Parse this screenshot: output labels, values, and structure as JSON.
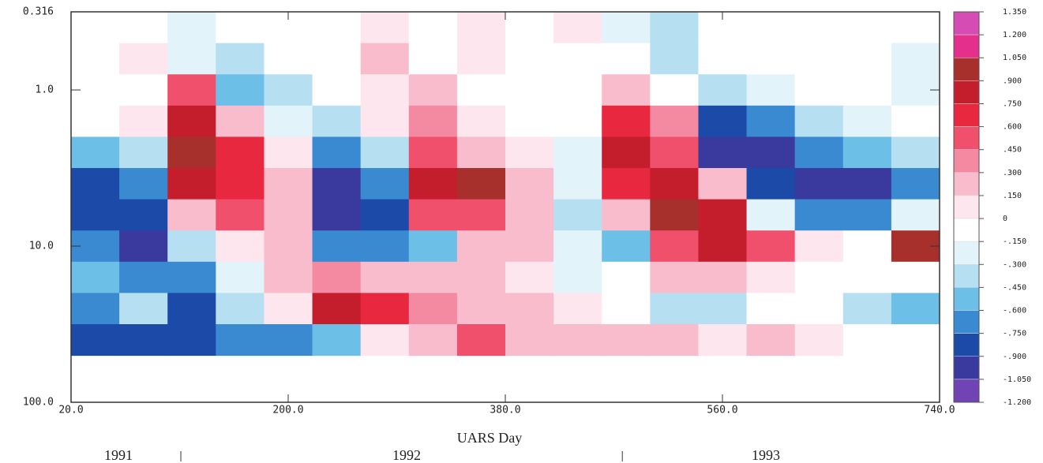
{
  "chart_data": {
    "type": "contour",
    "x_label": "UARS Day",
    "xlim": [
      20,
      740
    ],
    "xticks": [
      {
        "value": 20,
        "label": "20.0"
      },
      {
        "value": 200,
        "label": "200.0"
      },
      {
        "value": 380,
        "label": "380.0"
      },
      {
        "value": 560,
        "label": "560.0"
      },
      {
        "value": 740,
        "label": "740.0"
      }
    ],
    "ylim": [
      100,
      0.316
    ],
    "yticks": [
      0.316,
      {
        "value": 1,
        "label": "1.0"
      },
      {
        "value": 10,
        "label": "10.0"
      },
      {
        "value": 100,
        "label": "100.0"
      }
    ],
    "yscale": "log",
    "year_labels": [
      "1991",
      "1992",
      "1993"
    ],
    "year_boundaries": [
      111,
      477
    ],
    "x": [
      40,
      80,
      120,
      160,
      200,
      240,
      280,
      320,
      360,
      400,
      440,
      480,
      520,
      560,
      600,
      640,
      680,
      720
    ],
    "y": [
      0.398,
      0.631,
      1,
      1.585,
      2.512,
      3.981,
      6.31,
      10,
      15.85,
      25.12,
      39.81
    ],
    "z": [
      [
        0,
        0,
        -0.2,
        0,
        0,
        0,
        0.1,
        0,
        0.1,
        0,
        0.1,
        -0.2,
        -0.3,
        0,
        0,
        0,
        0,
        0
      ],
      [
        0,
        0.1,
        -0.2,
        -0.3,
        -0.1,
        0,
        0.2,
        0,
        0.1,
        0,
        0,
        0,
        -0.4,
        -0.1,
        0,
        0,
        0,
        -0.2
      ],
      [
        0,
        0,
        0.5,
        -0.5,
        -0.3,
        0,
        0.1,
        0.2,
        0,
        0,
        0,
        0.3,
        0,
        -0.3,
        -0.2,
        0,
        0,
        -0.2
      ],
      [
        0,
        0.1,
        0.8,
        0.2,
        -0.2,
        -0.3,
        0.1,
        0.4,
        0.1,
        0,
        -0.1,
        0.7,
        0.4,
        -0.8,
        -0.6,
        -0.4,
        -0.2,
        -0.1
      ],
      [
        -0.5,
        -0.3,
        0.95,
        0.7,
        0.1,
        -0.6,
        -0.4,
        0.5,
        0.3,
        0.1,
        -0.2,
        0.9,
        0.6,
        -1.0,
        -0.9,
        -0.7,
        -0.5,
        -0.3
      ],
      [
        -0.8,
        -0.6,
        0.8,
        0.7,
        0.2,
        -0.9,
        -0.7,
        0.8,
        1.0,
        0.2,
        -0.2,
        0.7,
        0.9,
        0.2,
        -0.8,
        -0.95,
        -0.9,
        -0.7
      ],
      [
        -0.8,
        -0.85,
        0.2,
        0.5,
        0.2,
        -0.9,
        -0.8,
        0.5,
        0.6,
        0.3,
        -0.3,
        0.3,
        1.0,
        0.8,
        -0.2,
        -0.6,
        -0.7,
        -0.2
      ],
      [
        -0.6,
        -0.9,
        -0.3,
        0.1,
        0.2,
        -0.6,
        -0.7,
        -0.5,
        0.2,
        0.2,
        -0.2,
        -0.5,
        0.5,
        0.8,
        0.6,
        0.1,
        0,
        1.0
      ],
      [
        -0.5,
        -0.6,
        -0.6,
        -0.2,
        0.3,
        0.4,
        0.2,
        0.2,
        0.3,
        0.1,
        -0.2,
        -0.1,
        0.2,
        0.3,
        0.1,
        0,
        0,
        0
      ],
      [
        -0.6,
        -0.4,
        -0.8,
        -0.4,
        0.1,
        0.8,
        0.7,
        0.4,
        0.2,
        0.2,
        0.1,
        0,
        -0.4,
        -0.3,
        0,
        0,
        -0.3,
        -0.5
      ],
      [
        -0.8,
        -0.8,
        -0.8,
        -0.7,
        -0.6,
        -0.5,
        0.1,
        0.2,
        0.6,
        0.3,
        0.3,
        0.3,
        0.3,
        0.1,
        0.2,
        0.1,
        0,
        0
      ]
    ],
    "colorbar": {
      "levels": [
        {
          "value": 1.35,
          "label": "1.350"
        },
        {
          "value": 1.2,
          "label": "1.200"
        },
        {
          "value": 1.05,
          "label": "1.050"
        },
        {
          "value": 0.9,
          "label": ".900"
        },
        {
          "value": 0.75,
          "label": ".750"
        },
        {
          "value": 0.6,
          "label": ".600"
        },
        {
          "value": 0.45,
          "label": ".450"
        },
        {
          "value": 0.3,
          "label": ".300"
        },
        {
          "value": 0.15,
          "label": ".150"
        },
        0,
        {
          "value": -0.15,
          "label": "-.150"
        },
        {
          "value": -0.3,
          "label": "-.300"
        },
        {
          "value": -0.45,
          "label": "-.450"
        },
        {
          "value": -0.6,
          "label": "-.600"
        },
        {
          "value": -0.75,
          "label": "-.750"
        },
        {
          "value": -0.9,
          "label": "-.900"
        },
        {
          "value": -1.05,
          "label": "-1.050"
        },
        {
          "value": -1.2,
          "label": "-1.200"
        }
      ],
      "colors": [
        "#d44cb4",
        "#e4308c",
        "#a8302c",
        "#c41e2c",
        "#e8283e",
        "#f0506c",
        "#f48aa2",
        "#f8bccc",
        "#fde6ee",
        "#ffffff",
        "#e2f4fa",
        "#b6e0f2",
        "#6cc0e8",
        "#3a8ad2",
        "#1c4aa8",
        "#3a3a9e",
        "#7044b4"
      ]
    }
  }
}
